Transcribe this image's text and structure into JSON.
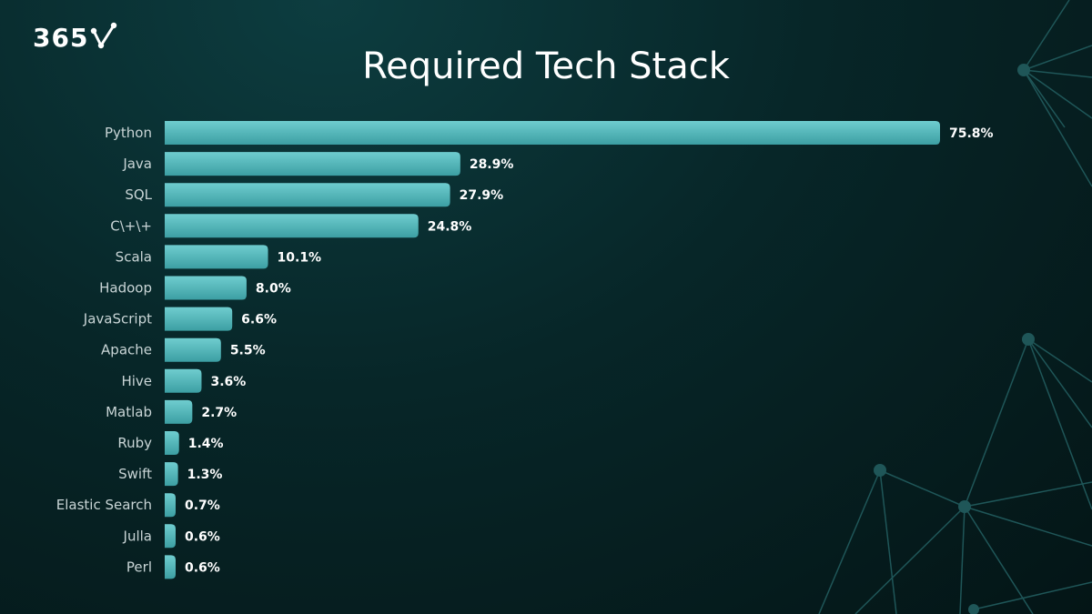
{
  "logo": {
    "text": "365"
  },
  "colors": {
    "bar": "#4db8bb",
    "background": "#072628",
    "network": "#1f5658"
  },
  "chart_data": {
    "type": "bar",
    "orientation": "horizontal",
    "title": "Required Tech Stack",
    "categories": [
      "Python",
      "Java",
      "SQL",
      "C\\+\\+",
      "Scala",
      "Hadoop",
      "JavaScript",
      "Apache",
      "Hive",
      "Matlab",
      "Ruby",
      "Swift",
      "Elastic Search",
      "Julla",
      "Perl"
    ],
    "values": [
      75.8,
      28.9,
      27.9,
      24.8,
      10.1,
      8.0,
      6.6,
      5.5,
      3.6,
      2.7,
      1.4,
      1.3,
      0.7,
      0.6,
      0.6
    ],
    "value_labels": [
      "75.8%",
      "28.9%",
      "27.9%",
      "24.8%",
      "10.1%",
      "8.0%",
      "6.6%",
      "5.5%",
      "3.6%",
      "2.7%",
      "1.4%",
      "1.3%",
      "0.7%",
      "0.6%",
      "0.6%"
    ],
    "xlabel": "",
    "ylabel": "",
    "grid": false,
    "legend": "none"
  }
}
